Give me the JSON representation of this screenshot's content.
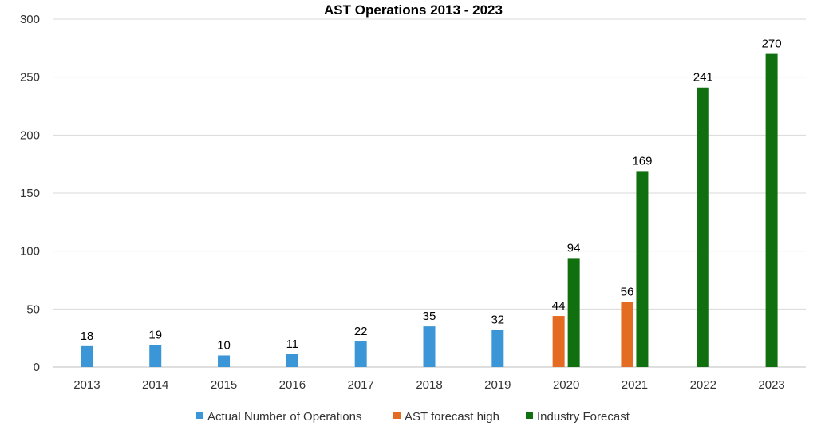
{
  "chart_data": {
    "type": "bar",
    "title": "AST Operations 2013 - 2023",
    "xlabel": "",
    "ylabel": "",
    "categories": [
      "2013",
      "2014",
      "2015",
      "2016",
      "2017",
      "2018",
      "2019",
      "2020",
      "2021",
      "2022",
      "2023"
    ],
    "ylim": [
      0,
      300
    ],
    "yticks": [
      0,
      50,
      100,
      150,
      200,
      250,
      300
    ],
    "grid": true,
    "legend_position": "bottom",
    "series": [
      {
        "name": "Actual Number of Operations",
        "color": "#3a96d6",
        "values": [
          18,
          19,
          10,
          11,
          22,
          35,
          32,
          null,
          null,
          null,
          null
        ]
      },
      {
        "name": "AST forecast high",
        "color": "#e36c22",
        "values": [
          null,
          null,
          null,
          null,
          null,
          null,
          null,
          44,
          56,
          null,
          null
        ]
      },
      {
        "name": "Industry Forecast",
        "color": "#107010",
        "values": [
          null,
          null,
          null,
          null,
          null,
          null,
          null,
          94,
          169,
          241,
          270
        ]
      }
    ]
  }
}
